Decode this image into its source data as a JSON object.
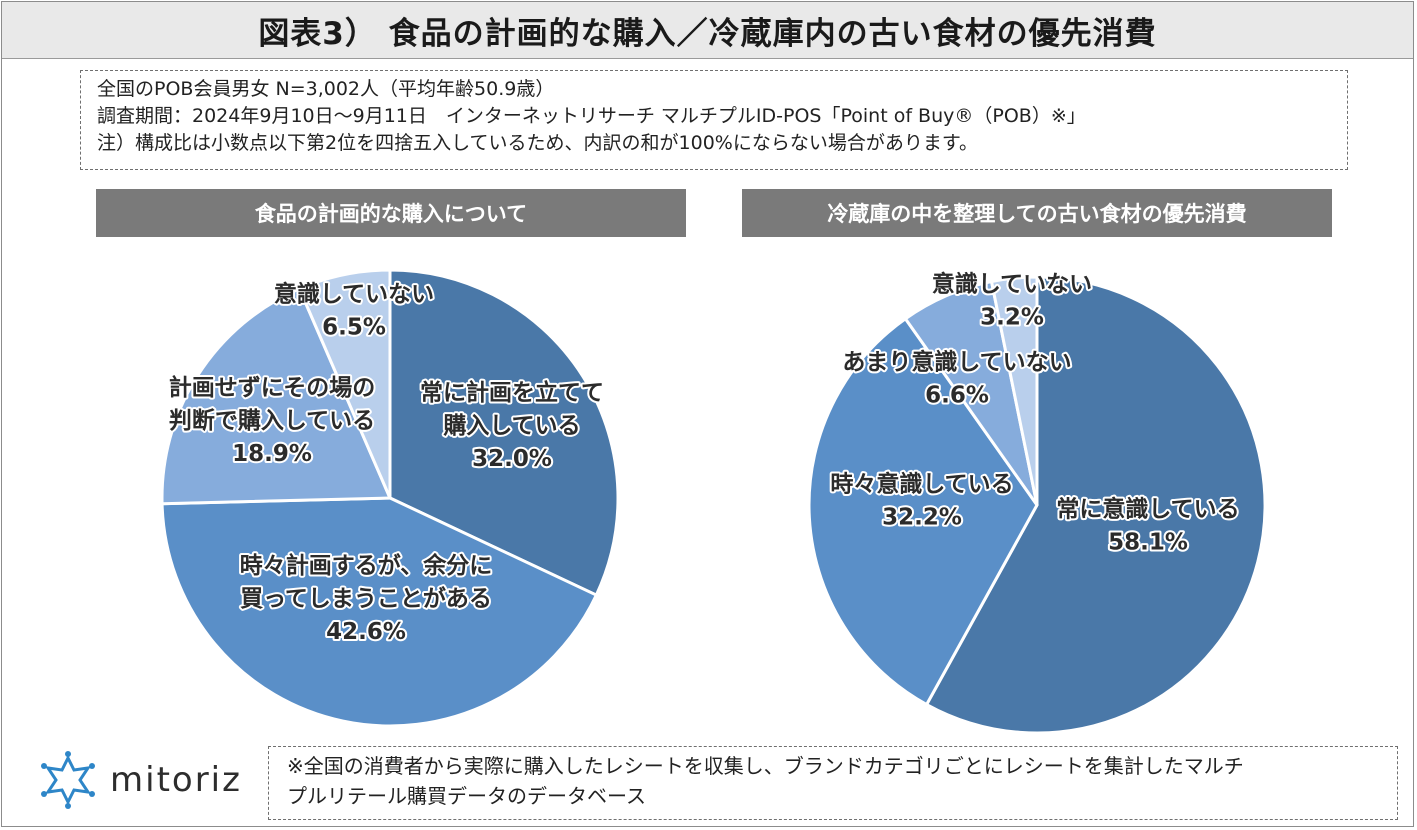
{
  "title": "図表3） 食品の計画的な購入／冷蔵庫内の古い食材の優先消費",
  "notes": [
    "全国のPOB会員男女 N=3,002人（平均年齢50.9歳）",
    "調査期間：2024年9月10日～9月11日　インターネットリサーチ マルチプルID-POS「Point of Buy®（POB）※」",
    "注）構成比は小数点以下第2位を四捨五入しているため、内訳の和が100%にならない場合があります。"
  ],
  "footer": [
    "※全国の消費者から実際に購入したレシートを収集し、ブランドカテゴリごとにレシートを集計したマルチ",
    "プルリテール購買データのデータベース"
  ],
  "logo": {
    "text": "mitoriz",
    "icon": "mitoriz-star-logo-icon"
  },
  "chart_data": [
    {
      "type": "pie",
      "title": "食品の計画的な購入について",
      "slices": [
        {
          "label": [
            "常に計画を立てて",
            "購入している"
          ],
          "value": 32.0,
          "value_label": "32.0%",
          "color": "#4a78a8"
        },
        {
          "label": [
            "時々計画するが、余分に",
            "買ってしまうことがある"
          ],
          "value": 42.6,
          "value_label": "42.6%",
          "color": "#5a8fc8"
        },
        {
          "label": [
            "計画せずにその場の",
            "判断で購入している"
          ],
          "value": 18.9,
          "value_label": "18.9%",
          "color": "#86acdc"
        },
        {
          "label": [
            "意識していない"
          ],
          "value": 6.5,
          "value_label": "6.5%",
          "color": "#b9cfec"
        }
      ]
    },
    {
      "type": "pie",
      "title": "冷蔵庫の中を整理しての古い食材の優先消費",
      "slices": [
        {
          "label": [
            "常に意識している"
          ],
          "value": 58.1,
          "value_label": "58.1%",
          "color": "#4a78a8"
        },
        {
          "label": [
            "時々意識している"
          ],
          "value": 32.2,
          "value_label": "32.2%",
          "color": "#5a8fc8"
        },
        {
          "label": [
            "あまり意識していない"
          ],
          "value": 6.6,
          "value_label": "6.6%",
          "color": "#86acdc"
        },
        {
          "label": [
            "意識していない"
          ],
          "value": 3.2,
          "value_label": "3.2%",
          "color": "#b9cfec"
        }
      ]
    }
  ]
}
